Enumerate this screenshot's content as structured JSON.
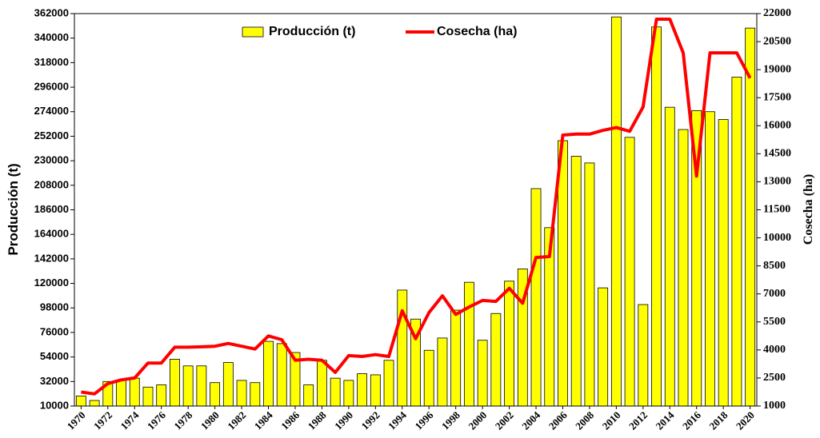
{
  "chart_data": {
    "type": "bar-line",
    "categories": [
      "1970",
      null,
      "1972",
      null,
      "1974",
      null,
      "1976",
      null,
      "1978",
      null,
      "1980",
      null,
      "1982",
      null,
      "1984",
      null,
      "1986",
      null,
      "1988",
      null,
      "1990",
      null,
      "1992",
      null,
      "1994",
      null,
      "1996",
      null,
      "1998",
      null,
      "2000",
      null,
      "2002",
      null,
      "2004",
      null,
      "2006",
      null,
      "2008",
      null,
      "2010",
      null,
      "2012",
      null,
      "2014",
      null,
      "2016",
      null,
      "2018",
      null,
      "2020"
    ],
    "series": [
      {
        "name": "Producción (t)",
        "color": "#ffff00",
        "type": "bar",
        "values": [
          19000,
          15000,
          32000,
          33000,
          35000,
          27000,
          29000,
          52000,
          46000,
          46000,
          31000,
          49000,
          33000,
          31000,
          68000,
          66000,
          58000,
          29000,
          51000,
          35000,
          33000,
          39000,
          38000,
          51000,
          114000,
          88000,
          60000,
          71000,
          96000,
          121000,
          69000,
          93000,
          122000,
          133000,
          205000,
          170000,
          248000,
          234000,
          228000,
          116000,
          359000,
          251000,
          101000,
          350000,
          278000,
          258000,
          275000,
          274000,
          267000,
          305000,
          349000
        ]
      },
      {
        "name": "Cosecha (ha)",
        "color": "#ff0000",
        "type": "line",
        "axis": "y2",
        "values": [
          1750,
          1650,
          2200,
          2400,
          2500,
          3300,
          3300,
          4150,
          4150,
          4170,
          4200,
          4350,
          4200,
          4050,
          4750,
          4550,
          3450,
          3500,
          3450,
          2800,
          3700,
          3650,
          3750,
          3650,
          6100,
          4600,
          6000,
          6900,
          5900,
          6300,
          6650,
          6600,
          7300,
          6500,
          8950,
          9000,
          15500,
          15550,
          15550,
          15750,
          15900,
          15700,
          17000,
          21700,
          21700,
          19900,
          13300,
          19900,
          19900,
          19900,
          18550
        ]
      }
    ],
    "ylabel": "Producción (t)",
    "y2label": "Cosecha (ha)",
    "ylim": [
      10000,
      362000
    ],
    "yticks": [
      10000,
      32000,
      54000,
      76000,
      98000,
      120000,
      142000,
      164000,
      186000,
      208000,
      230000,
      252000,
      274000,
      296000,
      318000,
      340000,
      362000
    ],
    "y2lim": [
      1000,
      22000
    ],
    "y2ticks": [
      1000,
      2500,
      4000,
      5500,
      7000,
      8500,
      10000,
      11500,
      13000,
      14500,
      16000,
      17500,
      19000,
      20500,
      22000
    ],
    "legend": "top",
    "grid": false
  }
}
